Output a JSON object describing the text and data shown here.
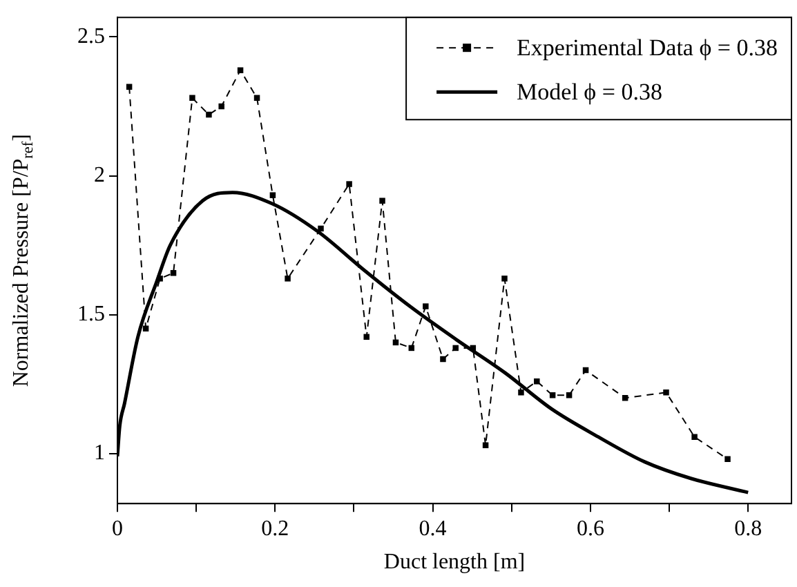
{
  "chart_data": {
    "type": "line",
    "xlabel": "Duct length [m]",
    "ylabel": "Normalized Pressure [P/P$_{ref}$]",
    "xlim": [
      0,
      0.855
    ],
    "ylim": [
      0.82,
      2.57
    ],
    "xticks": [
      0,
      {
        "value": 0.1,
        "label": null
      },
      0.2,
      {
        "value": 0.3,
        "label": null
      },
      0.4,
      {
        "value": 0.5,
        "label": null
      },
      0.6,
      {
        "value": 0.7,
        "label": null
      },
      0.8
    ],
    "yticks": [
      1,
      1.5,
      2,
      2.5
    ],
    "grid": false,
    "legend": "top right",
    "series": [
      {
        "name": "Experimental Data ϕ = 0.38",
        "type": "line",
        "color": "#000000",
        "marker": "square",
        "line_style": "dashed",
        "x": [
          0.015,
          0.036,
          0.054,
          0.071,
          0.095,
          0.116,
          0.132,
          0.156,
          0.177,
          0.197,
          0.216,
          0.258,
          0.294,
          0.316,
          0.336,
          0.353,
          0.373,
          0.391,
          0.413,
          0.429,
          0.451,
          0.467,
          0.491,
          0.512,
          0.532,
          0.552,
          0.573,
          0.594,
          0.644,
          0.696,
          0.732,
          0.774
        ],
        "values": [
          2.32,
          1.45,
          1.63,
          1.65,
          2.28,
          2.22,
          2.25,
          2.38,
          2.28,
          1.93,
          1.63,
          1.81,
          1.97,
          1.42,
          1.91,
          1.4,
          1.38,
          1.53,
          1.34,
          1.38,
          1.38,
          1.03,
          1.63,
          1.22,
          1.26,
          1.21,
          1.21,
          1.3,
          1.2,
          1.22,
          1.06,
          0.98
        ]
      },
      {
        "name": "Model ϕ = 0.38",
        "type": "line",
        "color": "#000000",
        "marker": "none",
        "line_style": "solid",
        "x": [
          0,
          0.003,
          0.009,
          0.026,
          0.05,
          0.067,
          0.108,
          0.146,
          0.196,
          0.254,
          0.313,
          0.371,
          0.43,
          0.492,
          0.551,
          0.61,
          0.669,
          0.728,
          0.8
        ],
        "values": [
          0.99,
          1.1,
          1.18,
          1.42,
          1.62,
          1.75,
          1.91,
          1.94,
          1.9,
          1.8,
          1.66,
          1.53,
          1.41,
          1.29,
          1.16,
          1.06,
          0.97,
          0.91,
          0.86
        ]
      }
    ]
  }
}
